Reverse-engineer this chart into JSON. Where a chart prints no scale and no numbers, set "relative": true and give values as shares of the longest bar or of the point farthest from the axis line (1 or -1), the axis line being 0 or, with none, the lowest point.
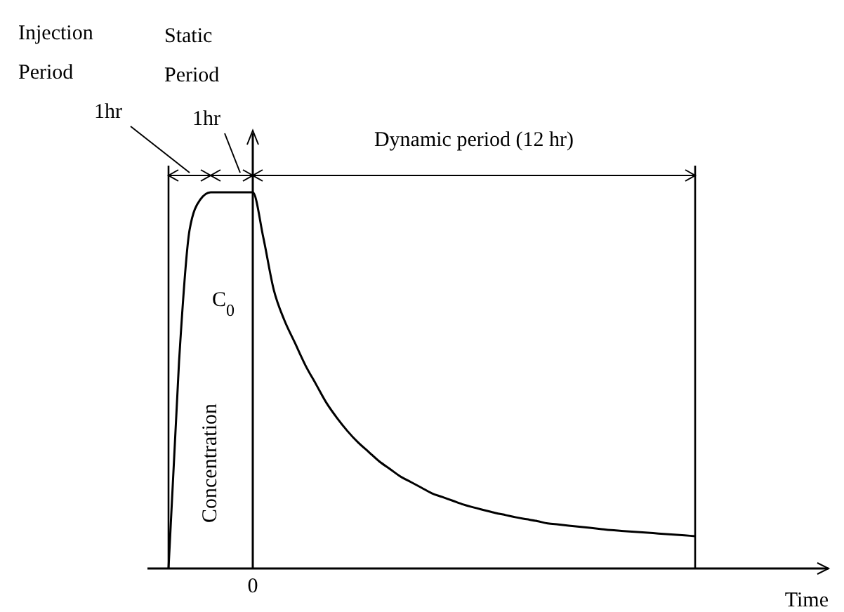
{
  "chart_data": {
    "type": "line",
    "relative": true,
    "xlabel": "Time",
    "ylabel": "Concentration",
    "categories": [
      null,
      null,
      null,
      null,
      null,
      null,
      null,
      null,
      null,
      null,
      null,
      null,
      null,
      null,
      null,
      null,
      null,
      null,
      null,
      null,
      null,
      null,
      null,
      null,
      null,
      null,
      null,
      null,
      null,
      null,
      null,
      null,
      null,
      null,
      null,
      null,
      null,
      null,
      null,
      null,
      null,
      null,
      null,
      null,
      null,
      null,
      null,
      null,
      null,
      null,
      null
    ],
    "series": [
      {
        "color": "#000000",
        "values": [
          0,
          0.55,
          0.9,
          0.98,
          1,
          1,
          1,
          1,
          1,
          0.88,
          0.74,
          0.66,
          0.6,
          0.54,
          0.49,
          0.44,
          0.4,
          0.365,
          0.335,
          0.31,
          0.285,
          0.265,
          0.245,
          0.23,
          0.215,
          0.2,
          0.19,
          0.18,
          0.17,
          0.162,
          0.155,
          0.148,
          0.142,
          0.136,
          0.131,
          0.126,
          0.12,
          0.117,
          0.114,
          0.111,
          0.108,
          0.105,
          0.102,
          0.1,
          0.098,
          0.096,
          0.094,
          0.092,
          0.09,
          0.088,
          0.086
        ]
      }
    ],
    "marker": "none",
    "line_style": "solid",
    "annotations": [
      "0",
      "Injection Period",
      "Static Period",
      "1hr",
      "1hr",
      "Dynamic period (12 hr)",
      "C$_{0}$"
    ]
  }
}
